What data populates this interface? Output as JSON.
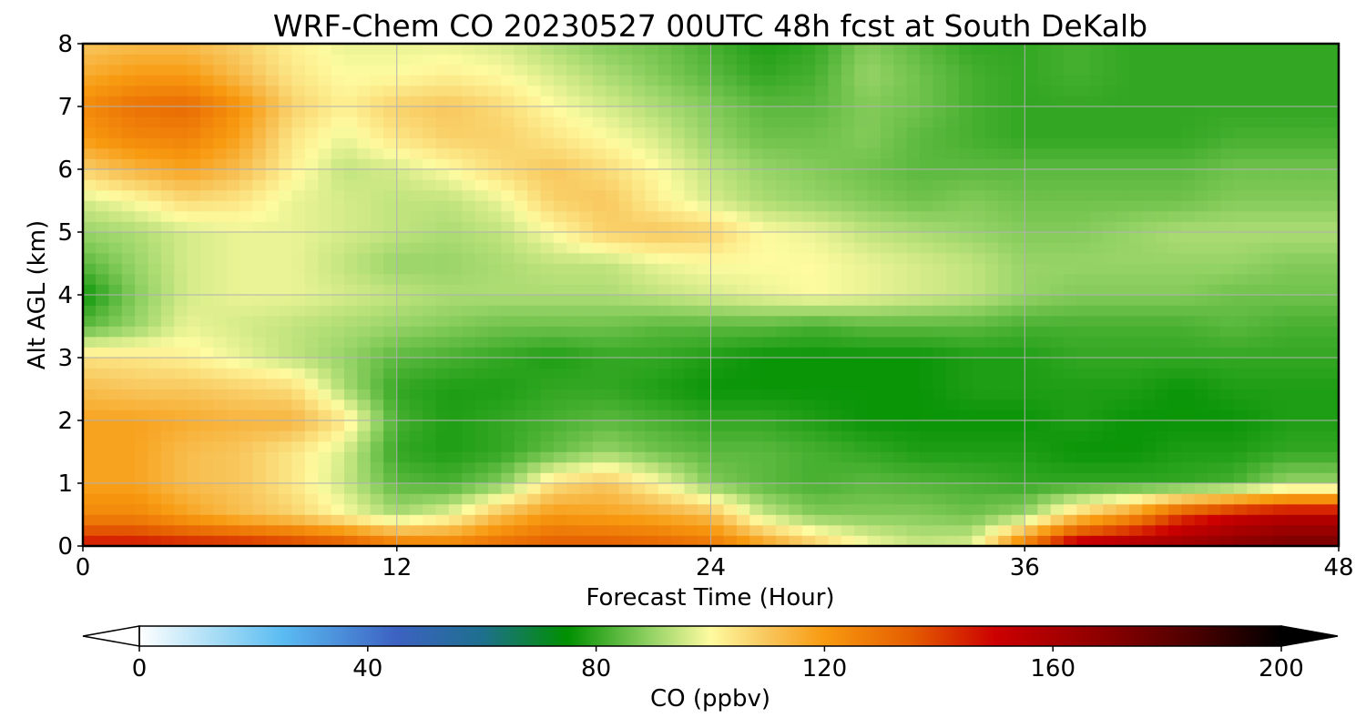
{
  "chart_data": {
    "type": "heatmap",
    "title": "WRF-Chem CO  20230527 00UTC 48h fcst at South DeKalb",
    "xlabel": "Forecast Time (Hour)",
    "ylabel": "Alt AGL (km)",
    "xlim": [
      0,
      48
    ],
    "ylim": [
      0,
      8
    ],
    "xticks": [
      "0",
      "12",
      "24",
      "36",
      "48"
    ],
    "yticks": [
      "0",
      "1",
      "2",
      "3",
      "4",
      "5",
      "6",
      "7",
      "8"
    ],
    "grid": true,
    "colorbar": {
      "label": "CO  (ppbv)",
      "range": [
        0,
        200
      ],
      "extend": "both",
      "ticks": [
        "0",
        "40",
        "80",
        "120",
        "160",
        "200"
      ],
      "colors": [
        {
          "value": 0,
          "color": "#ffffff"
        },
        {
          "value": 15,
          "color": "#9cd8f4"
        },
        {
          "value": 25,
          "color": "#5bbcf2"
        },
        {
          "value": 45,
          "color": "#3c62c2"
        },
        {
          "value": 60,
          "color": "#1e6f8e"
        },
        {
          "value": 75,
          "color": "#009000"
        },
        {
          "value": 90,
          "color": "#98d468"
        },
        {
          "value": 100,
          "color": "#fefba0"
        },
        {
          "value": 110,
          "color": "#f8c65c"
        },
        {
          "value": 120,
          "color": "#f89a10"
        },
        {
          "value": 135,
          "color": "#e55e00"
        },
        {
          "value": 150,
          "color": "#cc0000"
        },
        {
          "value": 170,
          "color": "#880000"
        },
        {
          "value": 185,
          "color": "#4a0000"
        },
        {
          "value": 200,
          "color": "#000000"
        }
      ]
    },
    "grid_hours": [
      0,
      2,
      4,
      6,
      8,
      10,
      12,
      14,
      16,
      18,
      20,
      22,
      24,
      26,
      28,
      30,
      32,
      34,
      36,
      38,
      40,
      42,
      44,
      46,
      48
    ],
    "grid_alt_km": [
      0,
      0.5,
      1,
      1.5,
      2,
      2.5,
      3,
      3.5,
      4,
      4.5,
      5,
      5.5,
      6,
      6.5,
      7,
      7.5,
      8
    ],
    "co_ppbv": [
      [
        148,
        148,
        146,
        145,
        142,
        138,
        130,
        128,
        132,
        136,
        136,
        134,
        130,
        120,
        110,
        100,
        95,
        97,
        130,
        158,
        162,
        165,
        170,
        175,
        175
      ],
      [
        125,
        125,
        118,
        112,
        108,
        100,
        92,
        98,
        112,
        120,
        118,
        116,
        112,
        95,
        88,
        88,
        88,
        86,
        90,
        108,
        120,
        140,
        150,
        155,
        155
      ],
      [
        118,
        118,
        112,
        110,
        104,
        95,
        84,
        82,
        88,
        105,
        110,
        100,
        88,
        84,
        82,
        84,
        83,
        82,
        80,
        80,
        80,
        80,
        82,
        90,
        90
      ],
      [
        118,
        118,
        112,
        110,
        104,
        96,
        80,
        78,
        80,
        85,
        90,
        86,
        84,
        84,
        82,
        80,
        78,
        78,
        78,
        76,
        76,
        78,
        78,
        80,
        80
      ],
      [
        118,
        118,
        116,
        114,
        114,
        104,
        82,
        78,
        80,
        82,
        84,
        82,
        80,
        80,
        78,
        76,
        76,
        76,
        76,
        78,
        76,
        76,
        76,
        78,
        78
      ],
      [
        112,
        110,
        110,
        108,
        106,
        92,
        80,
        78,
        78,
        80,
        80,
        78,
        76,
        76,
        76,
        76,
        76,
        78,
        78,
        78,
        78,
        76,
        78,
        78,
        78
      ],
      [
        105,
        104,
        102,
        98,
        94,
        90,
        84,
        82,
        80,
        78,
        80,
        80,
        78,
        76,
        76,
        76,
        76,
        78,
        78,
        80,
        80,
        80,
        80,
        80,
        80
      ],
      [
        84,
        90,
        98,
        96,
        94,
        92,
        90,
        88,
        86,
        86,
        86,
        84,
        84,
        84,
        82,
        84,
        84,
        84,
        82,
        82,
        82,
        82,
        84,
        82,
        82
      ],
      [
        76,
        88,
        96,
        98,
        98,
        96,
        94,
        92,
        92,
        92,
        92,
        94,
        96,
        98,
        100,
        98,
        96,
        94,
        90,
        88,
        88,
        88,
        86,
        86,
        86
      ],
      [
        84,
        90,
        96,
        98,
        98,
        94,
        90,
        90,
        92,
        94,
        94,
        98,
        100,
        100,
        100,
        98,
        96,
        94,
        90,
        90,
        90,
        90,
        90,
        88,
        88
      ],
      [
        90,
        92,
        96,
        98,
        98,
        96,
        94,
        92,
        94,
        100,
        108,
        110,
        108,
        100,
        98,
        94,
        92,
        90,
        88,
        88,
        90,
        92,
        92,
        92,
        92
      ],
      [
        96,
        100,
        106,
        104,
        98,
        96,
        94,
        94,
        98,
        108,
        110,
        102,
        96,
        92,
        90,
        88,
        86,
        88,
        86,
        86,
        86,
        86,
        88,
        88,
        88
      ],
      [
        108,
        114,
        118,
        112,
        102,
        94,
        96,
        100,
        106,
        110,
        106,
        100,
        94,
        90,
        88,
        86,
        84,
        84,
        84,
        84,
        84,
        84,
        86,
        86,
        86
      ],
      [
        120,
        125,
        126,
        118,
        104,
        98,
        104,
        108,
        108,
        104,
        100,
        96,
        90,
        86,
        86,
        88,
        84,
        82,
        80,
        80,
        80,
        80,
        82,
        82,
        82
      ],
      [
        124,
        130,
        132,
        122,
        108,
        102,
        108,
        110,
        106,
        100,
        96,
        92,
        88,
        84,
        84,
        88,
        86,
        82,
        80,
        80,
        80,
        80,
        80,
        80,
        80
      ],
      [
        116,
        120,
        120,
        112,
        104,
        100,
        100,
        102,
        100,
        96,
        92,
        88,
        84,
        80,
        82,
        90,
        86,
        82,
        80,
        82,
        80,
        80,
        80,
        80,
        80
      ],
      [
        110,
        112,
        112,
        108,
        102,
        98,
        98,
        98,
        96,
        92,
        88,
        86,
        82,
        78,
        80,
        88,
        84,
        80,
        80,
        82,
        80,
        80,
        80,
        80,
        80
      ]
    ]
  }
}
